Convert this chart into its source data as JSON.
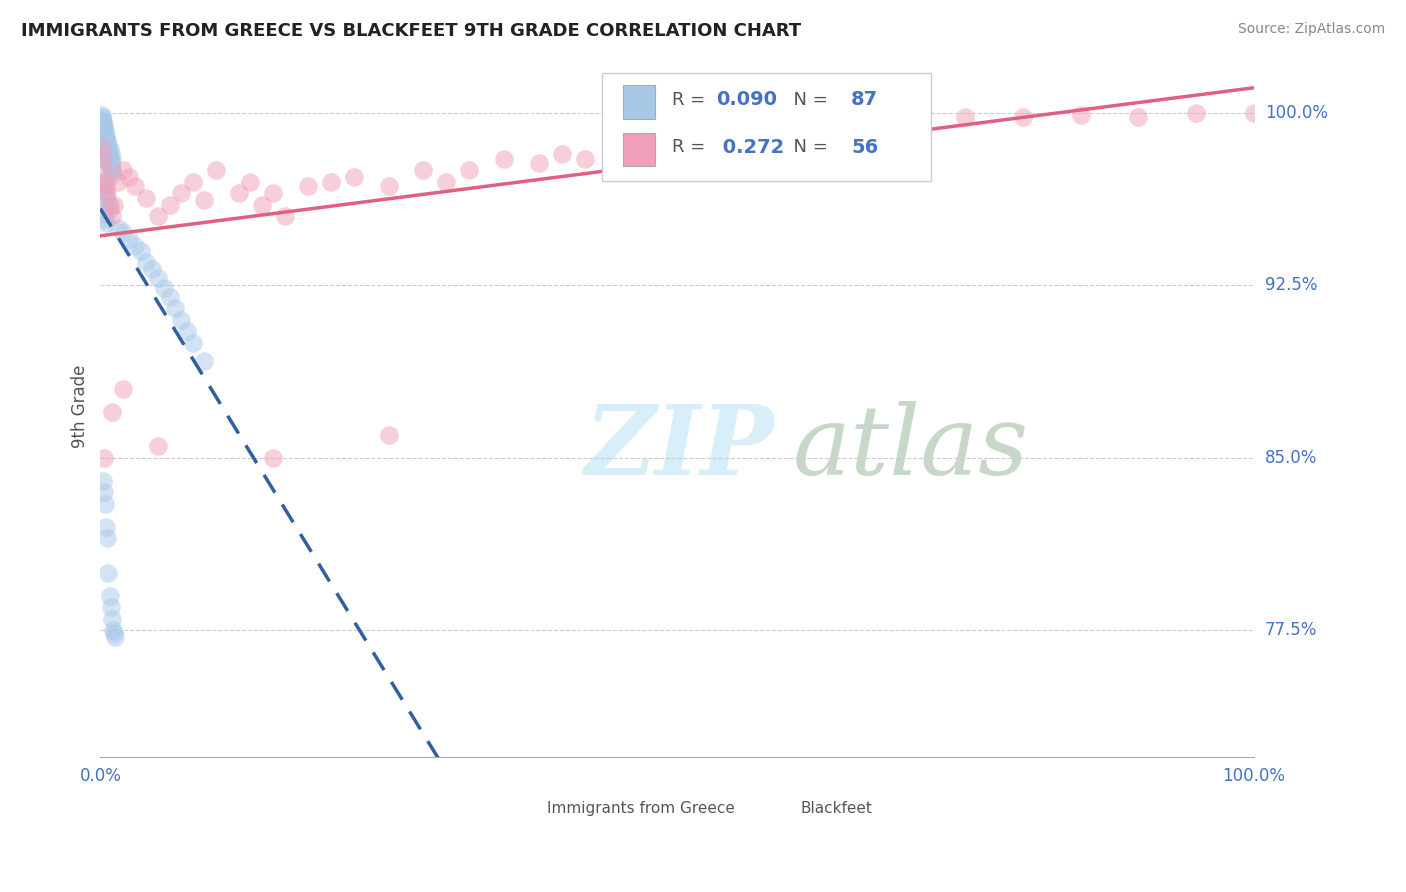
{
  "title": "IMMIGRANTS FROM GREECE VS BLACKFEET 9TH GRADE CORRELATION CHART",
  "source": "Source: ZipAtlas.com",
  "ylabel": "9th Grade",
  "yright_ticks": [
    1.0,
    0.925,
    0.85,
    0.775
  ],
  "yright_labels": [
    "100.0%",
    "92.5%",
    "85.0%",
    "77.5%"
  ],
  "xlim": [
    0.0,
    1.0
  ],
  "ylim": [
    0.72,
    1.025
  ],
  "R_blue": 0.09,
  "N_blue": 87,
  "R_pink": 0.272,
  "N_pink": 56,
  "legend_label_blue": "Immigrants from Greece",
  "legend_label_pink": "Blackfeet",
  "blue_color": "#a8c8e8",
  "pink_color": "#f0a0b8",
  "blue_line_color": "#3060a0",
  "pink_line_color": "#e06080",
  "blue_scatter_x": [
    0.001,
    0.001,
    0.002,
    0.002,
    0.002,
    0.003,
    0.003,
    0.003,
    0.003,
    0.004,
    0.004,
    0.004,
    0.005,
    0.005,
    0.005,
    0.006,
    0.006,
    0.007,
    0.007,
    0.008,
    0.008,
    0.009,
    0.009,
    0.01,
    0.01,
    0.001,
    0.002,
    0.003,
    0.004,
    0.005,
    0.001,
    0.002,
    0.003,
    0.004,
    0.005,
    0.006,
    0.007,
    0.008,
    0.009,
    0.01,
    0.001,
    0.002,
    0.003,
    0.004,
    0.005,
    0.006,
    0.007,
    0.008,
    0.009,
    0.01,
    0.002,
    0.003,
    0.004,
    0.005,
    0.006,
    0.007,
    0.008,
    0.003,
    0.004,
    0.005,
    0.015,
    0.02,
    0.025,
    0.03,
    0.035,
    0.04,
    0.045,
    0.05,
    0.055,
    0.06,
    0.065,
    0.07,
    0.075,
    0.08,
    0.09,
    0.002,
    0.003,
    0.004,
    0.005,
    0.006,
    0.007,
    0.008,
    0.009,
    0.01,
    0.011,
    0.012,
    0.013
  ],
  "blue_scatter_y": [
    0.998,
    0.996,
    0.995,
    0.994,
    0.993,
    0.992,
    0.991,
    0.99,
    0.989,
    0.988,
    0.987,
    0.986,
    0.985,
    0.984,
    0.983,
    0.982,
    0.981,
    0.98,
    0.979,
    0.978,
    0.977,
    0.976,
    0.975,
    0.974,
    0.973,
    0.997,
    0.993,
    0.991,
    0.989,
    0.987,
    0.994,
    0.992,
    0.99,
    0.988,
    0.986,
    0.984,
    0.982,
    0.98,
    0.978,
    0.976,
    0.999,
    0.996,
    0.994,
    0.992,
    0.99,
    0.988,
    0.986,
    0.984,
    0.982,
    0.98,
    0.97,
    0.968,
    0.966,
    0.964,
    0.962,
    0.96,
    0.958,
    0.956,
    0.954,
    0.952,
    0.95,
    0.948,
    0.945,
    0.942,
    0.94,
    0.935,
    0.932,
    0.928,
    0.924,
    0.92,
    0.915,
    0.91,
    0.905,
    0.9,
    0.892,
    0.84,
    0.835,
    0.83,
    0.82,
    0.815,
    0.8,
    0.79,
    0.785,
    0.78,
    0.775,
    0.774,
    0.772
  ],
  "pink_scatter_x": [
    0.001,
    0.002,
    0.003,
    0.004,
    0.005,
    0.006,
    0.008,
    0.01,
    0.012,
    0.015,
    0.02,
    0.025,
    0.03,
    0.04,
    0.05,
    0.06,
    0.07,
    0.08,
    0.09,
    0.1,
    0.12,
    0.13,
    0.14,
    0.15,
    0.16,
    0.18,
    0.2,
    0.22,
    0.25,
    0.28,
    0.3,
    0.32,
    0.35,
    0.38,
    0.4,
    0.42,
    0.45,
    0.48,
    0.5,
    0.52,
    0.55,
    0.6,
    0.65,
    0.7,
    0.75,
    0.8,
    0.85,
    0.9,
    0.95,
    1.0,
    0.003,
    0.01,
    0.02,
    0.05,
    0.15,
    0.25
  ],
  "pink_scatter_y": [
    0.985,
    0.98,
    0.975,
    0.97,
    0.968,
    0.965,
    0.96,
    0.955,
    0.96,
    0.97,
    0.975,
    0.972,
    0.968,
    0.963,
    0.955,
    0.96,
    0.965,
    0.97,
    0.962,
    0.975,
    0.965,
    0.97,
    0.96,
    0.965,
    0.955,
    0.968,
    0.97,
    0.972,
    0.968,
    0.975,
    0.97,
    0.975,
    0.98,
    0.978,
    0.982,
    0.98,
    0.985,
    0.982,
    0.988,
    0.985,
    0.99,
    0.992,
    0.994,
    0.996,
    0.998,
    0.998,
    0.999,
    0.998,
    1.0,
    1.0,
    0.85,
    0.87,
    0.88,
    0.855,
    0.85,
    0.86
  ]
}
